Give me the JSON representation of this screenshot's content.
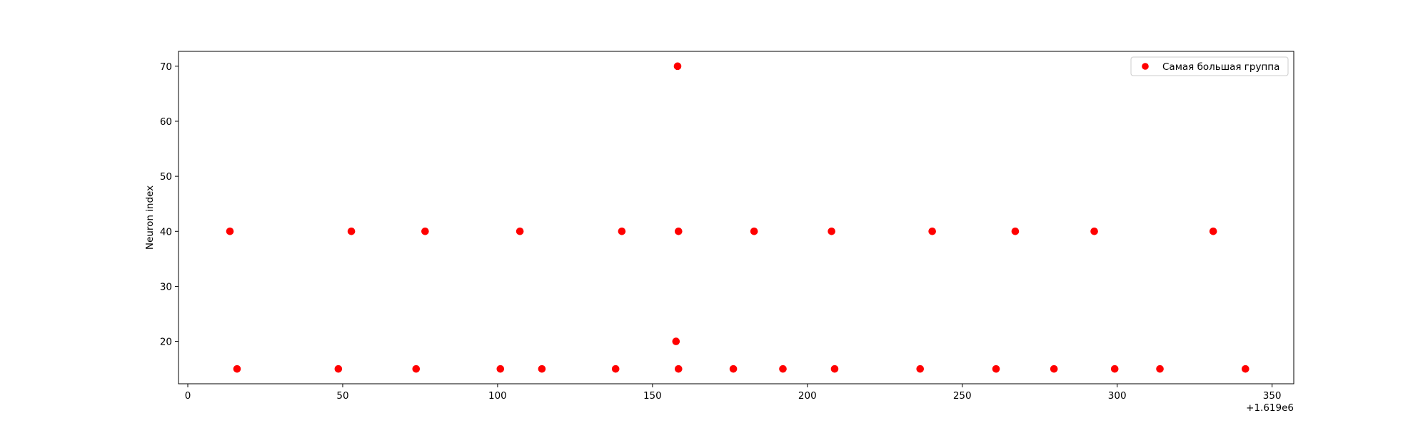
{
  "chart_data": {
    "type": "scatter",
    "title": "",
    "xlabel": "",
    "ylabel": "Neuron index",
    "x_offset_label": "+1.619e6",
    "xlim": [
      -3,
      357
    ],
    "ylim": [
      12.3,
      72.7
    ],
    "x_ticks": [
      0,
      50,
      100,
      150,
      200,
      250,
      300,
      350
    ],
    "y_ticks": [
      20,
      30,
      40,
      50,
      60,
      70
    ],
    "x_tick_labels": [
      "0",
      "50",
      "100",
      "150",
      "200",
      "250",
      "300",
      "350"
    ],
    "y_tick_labels": [
      "20",
      "30",
      "40",
      "50",
      "60",
      "70"
    ],
    "grid": false,
    "legend_position": "top-right",
    "series": [
      {
        "name": "Самая большая группа",
        "color": "#ff0000",
        "marker": "circle",
        "points": [
          {
            "x": 13.6,
            "y": 40
          },
          {
            "x": 15.9,
            "y": 15
          },
          {
            "x": 48.6,
            "y": 15
          },
          {
            "x": 52.8,
            "y": 40
          },
          {
            "x": 73.7,
            "y": 15
          },
          {
            "x": 76.6,
            "y": 40
          },
          {
            "x": 100.9,
            "y": 15
          },
          {
            "x": 107.2,
            "y": 40
          },
          {
            "x": 114.3,
            "y": 15
          },
          {
            "x": 138.1,
            "y": 15
          },
          {
            "x": 140.1,
            "y": 40
          },
          {
            "x": 157.6,
            "y": 20
          },
          {
            "x": 158.1,
            "y": 70
          },
          {
            "x": 158.4,
            "y": 40
          },
          {
            "x": 158.4,
            "y": 15
          },
          {
            "x": 176.1,
            "y": 15
          },
          {
            "x": 182.8,
            "y": 40
          },
          {
            "x": 192.1,
            "y": 15
          },
          {
            "x": 207.8,
            "y": 40
          },
          {
            "x": 208.8,
            "y": 15
          },
          {
            "x": 236.4,
            "y": 15
          },
          {
            "x": 240.3,
            "y": 40
          },
          {
            "x": 260.9,
            "y": 15
          },
          {
            "x": 267.1,
            "y": 40
          },
          {
            "x": 279.6,
            "y": 15
          },
          {
            "x": 292.6,
            "y": 40
          },
          {
            "x": 299.2,
            "y": 15
          },
          {
            "x": 313.8,
            "y": 15
          },
          {
            "x": 331.0,
            "y": 40
          },
          {
            "x": 341.4,
            "y": 15
          }
        ]
      }
    ]
  }
}
